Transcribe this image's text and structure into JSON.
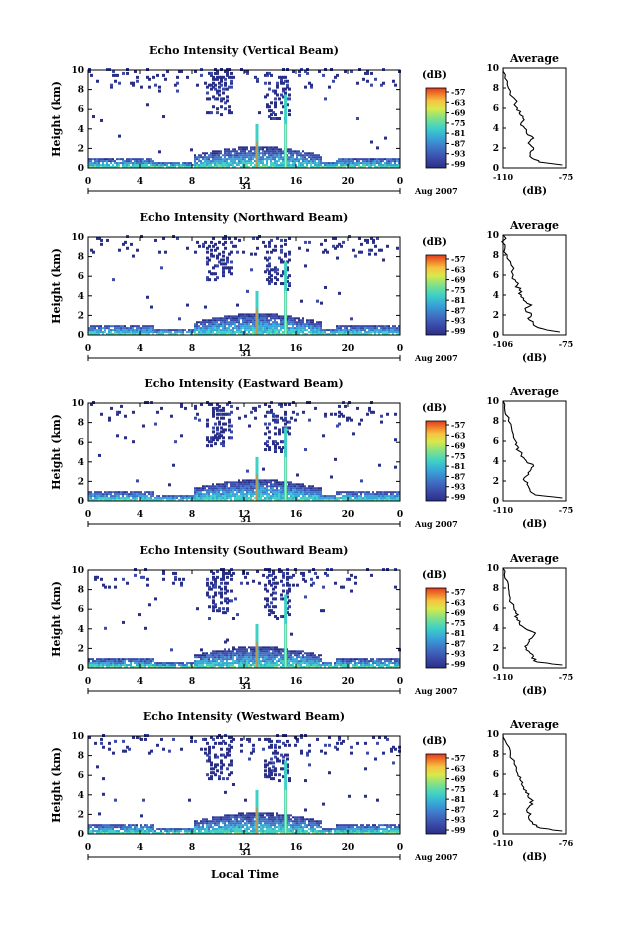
{
  "figure": {
    "x_axis_label": "Local Time",
    "day_label": "31",
    "month_label": "Aug 2007",
    "colorbar_unit": "(dB)",
    "colorbar_ticks": [
      "-57",
      "-63",
      "-69",
      "-75",
      "-81",
      "-87",
      "-93",
      "-99"
    ]
  },
  "colors": {
    "colormap": [
      "#2a2f86",
      "#3b4aa8",
      "#3f74c6",
      "#37a6d8",
      "#3fd1c6",
      "#7fe08a",
      "#d8e94a",
      "#f6c341",
      "#f07f2a",
      "#e23a1f"
    ]
  },
  "chart_data": [
    {
      "type": "heatmap",
      "title": "Echo Intensity (Vertical Beam)",
      "xlabel": "",
      "ylabel": "Height (km)",
      "xlim": [
        0,
        24
      ],
      "ylim": [
        0,
        10
      ],
      "x_ticks": [
        "0",
        "4",
        "8",
        "12",
        "16",
        "20",
        "0"
      ],
      "y_ticks": [
        "0",
        "2",
        "4",
        "6",
        "8",
        "10"
      ],
      "colorbar": {
        "label": "(dB)",
        "min": -99,
        "max": -57
      },
      "average_profile": {
        "title": "Average",
        "xlabel": "(dB)",
        "xlim": [
          -110,
          -75
        ],
        "x_ticks": [
          "-110",
          "-75"
        ],
        "y_ticks": [
          "0",
          "2",
          "4",
          "6",
          "8",
          "10"
        ],
        "heights": [
          0.3,
          0.6,
          1.0,
          1.5,
          2.0,
          2.5,
          3.0,
          3.5,
          4.0,
          4.5,
          5.0,
          5.5,
          6.0,
          7.0,
          8.0,
          9.0,
          10.0
        ],
        "values": [
          -77,
          -90,
          -94,
          -95,
          -93,
          -96,
          -93,
          -97,
          -98,
          -100,
          -99,
          -101,
          -102,
          -104,
          -107,
          -109,
          -110
        ]
      }
    },
    {
      "type": "heatmap",
      "title": "Echo Intensity (Northward Beam)",
      "xlabel": "",
      "ylabel": "Height (km)",
      "xlim": [
        0,
        24
      ],
      "ylim": [
        0,
        10
      ],
      "x_ticks": [
        "0",
        "4",
        "8",
        "12",
        "16",
        "20",
        "0"
      ],
      "y_ticks": [
        "0",
        "2",
        "4",
        "6",
        "8",
        "10"
      ],
      "colorbar": {
        "label": "(dB)",
        "min": -99,
        "max": -57
      },
      "average_profile": {
        "title": "Average",
        "xlabel": "(dB)",
        "xlim": [
          -106,
          -75
        ],
        "x_ticks": [
          "-106",
          "-75"
        ],
        "y_ticks": [
          "0",
          "2",
          "4",
          "6",
          "8",
          "10"
        ],
        "heights": [
          0.3,
          0.6,
          1.0,
          1.5,
          2.0,
          2.5,
          3.0,
          3.5,
          4.0,
          4.5,
          5.0,
          5.5,
          6.0,
          7.0,
          8.0,
          9.0,
          10.0
        ],
        "values": [
          -78,
          -86,
          -91,
          -93,
          -92,
          -95,
          -92,
          -96,
          -97,
          -98,
          -99,
          -100,
          -101,
          -102,
          -104,
          -105,
          -106
        ]
      }
    },
    {
      "type": "heatmap",
      "title": "Echo Intensity (Eastward Beam)",
      "xlabel": "",
      "ylabel": "Height (km)",
      "xlim": [
        0,
        24
      ],
      "ylim": [
        0,
        10
      ],
      "x_ticks": [
        "0",
        "4",
        "8",
        "12",
        "16",
        "20",
        "0"
      ],
      "y_ticks": [
        "0",
        "2",
        "4",
        "6",
        "8",
        "10"
      ],
      "colorbar": {
        "label": "(dB)",
        "min": -99,
        "max": -57
      },
      "average_profile": {
        "title": "Average",
        "xlabel": "(dB)",
        "xlim": [
          -110,
          -75
        ],
        "x_ticks": [
          "-110",
          "-75"
        ],
        "y_ticks": [
          "0",
          "2",
          "4",
          "6",
          "8",
          "10"
        ],
        "heights": [
          0.3,
          0.6,
          1.0,
          1.5,
          2.0,
          2.5,
          3.0,
          3.5,
          4.0,
          4.5,
          5.0,
          5.5,
          6.0,
          7.0,
          8.0,
          9.0,
          10.0
        ],
        "values": [
          -77,
          -92,
          -95,
          -96,
          -98,
          -97,
          -95,
          -93,
          -97,
          -100,
          -101,
          -102,
          -103,
          -105,
          -107,
          -109,
          -110
        ]
      }
    },
    {
      "type": "heatmap",
      "title": "Echo Intensity (Southward Beam)",
      "xlabel": "",
      "ylabel": "Height (km)",
      "xlim": [
        0,
        24
      ],
      "ylim": [
        0,
        10
      ],
      "x_ticks": [
        "0",
        "4",
        "8",
        "12",
        "16",
        "20",
        "0"
      ],
      "y_ticks": [
        "0",
        "2",
        "4",
        "6",
        "8",
        "10"
      ],
      "colorbar": {
        "label": "(dB)",
        "min": -99,
        "max": -57
      },
      "average_profile": {
        "title": "Average",
        "xlabel": "(dB)",
        "xlim": [
          -110,
          -75
        ],
        "x_ticks": [
          "-110",
          "-75"
        ],
        "y_ticks": [
          "0",
          "2",
          "4",
          "6",
          "8",
          "10"
        ],
        "heights": [
          0.3,
          0.6,
          1.0,
          1.5,
          2.0,
          2.5,
          3.0,
          3.5,
          4.0,
          4.5,
          5.0,
          5.5,
          6.0,
          7.0,
          8.0,
          9.0,
          10.0
        ],
        "values": [
          -77,
          -91,
          -94,
          -95,
          -97,
          -96,
          -94,
          -92,
          -98,
          -101,
          -102,
          -103,
          -104,
          -106,
          -107,
          -109,
          -110
        ]
      }
    },
    {
      "type": "heatmap",
      "title": "Echo Intensity (Westward Beam)",
      "xlabel": "Local Time",
      "ylabel": "Height (km)",
      "xlim": [
        0,
        24
      ],
      "ylim": [
        0,
        10
      ],
      "x_ticks": [
        "0",
        "4",
        "8",
        "12",
        "16",
        "20",
        "0"
      ],
      "y_ticks": [
        "0",
        "2",
        "4",
        "6",
        "8",
        "10"
      ],
      "colorbar": {
        "label": "(dB)",
        "min": -99,
        "max": -57
      },
      "average_profile": {
        "title": "Average",
        "xlabel": "(dB)",
        "xlim": [
          -110,
          -76
        ],
        "x_ticks": [
          "-110",
          "-76"
        ],
        "y_ticks": [
          "0",
          "2",
          "4",
          "6",
          "8",
          "10"
        ],
        "heights": [
          0.3,
          0.6,
          1.0,
          1.5,
          2.0,
          2.5,
          3.0,
          3.5,
          4.0,
          4.5,
          5.0,
          5.5,
          6.0,
          7.0,
          8.0,
          9.0,
          10.0
        ],
        "values": [
          -78,
          -90,
          -94,
          -96,
          -95,
          -97,
          -94,
          -95,
          -96,
          -99,
          -100,
          -101,
          -102,
          -104,
          -106,
          -108,
          -110
        ]
      }
    }
  ]
}
